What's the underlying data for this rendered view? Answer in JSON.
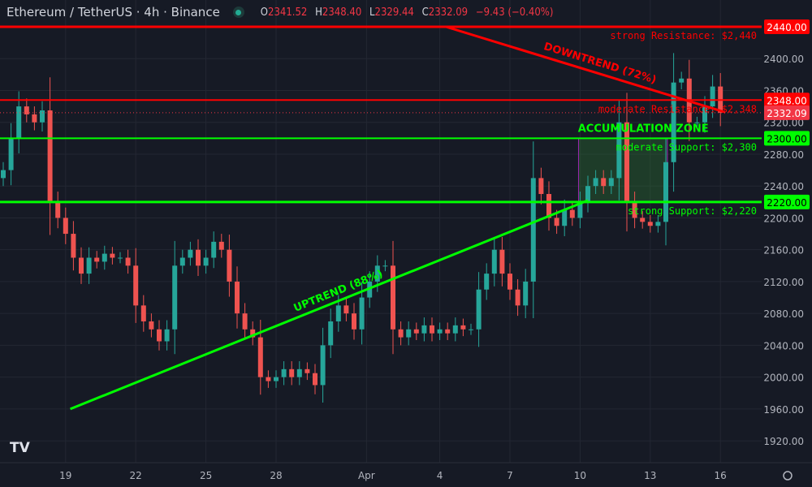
{
  "header": {
    "symbol": "Ethereum / TetherUS · 4h · Binance",
    "status_color": "#22ab94",
    "ohlc": {
      "o_label": "O",
      "o": "2341.52",
      "h_label": "H",
      "h": "2348.40",
      "l_label": "L",
      "l": "2329.44",
      "c_label": "C",
      "c": "2332.09",
      "change": "−9.43 (−0.40%)"
    }
  },
  "colors": {
    "background": "#161a25",
    "grid": "#232733",
    "up": "#26a69a",
    "down": "#ef5350",
    "resistance": "#ff0000",
    "support": "#00ff00",
    "zone_border": "#9c27b0",
    "text": "#b2b5be"
  },
  "chart_data": {
    "type": "candlestick",
    "title": "Ethereum / TetherUS · 4h · Binance",
    "ylim": [
      1900,
      2460
    ],
    "y_ticks": [
      2400,
      2360,
      2320,
      2280,
      2240,
      2200,
      2160,
      2120,
      2080,
      2040,
      2000,
      1960,
      1920
    ],
    "x_ticks": [
      {
        "label": "19",
        "index": 8
      },
      {
        "label": "22",
        "index": 17
      },
      {
        "label": "25",
        "index": 26
      },
      {
        "label": "28",
        "index": 35
      },
      {
        "label": "Apr",
        "index": 46.6
      },
      {
        "label": "4",
        "index": 56
      },
      {
        "label": "7",
        "index": 65
      },
      {
        "label": "10",
        "index": 74
      },
      {
        "label": "13",
        "index": 83
      },
      {
        "label": "16",
        "index": 92
      }
    ],
    "first_open": 2250,
    "closes": [
      2260,
      2300,
      2340,
      2330,
      2320,
      2335,
      2220,
      2200,
      2180,
      2150,
      2130,
      2150,
      2145,
      2155,
      2150,
      2150,
      2140,
      2090,
      2070,
      2060,
      2045,
      2060,
      2140,
      2150,
      2160,
      2140,
      2150,
      2170,
      2160,
      2120,
      2080,
      2060,
      2050,
      2000,
      1995,
      2000,
      2010,
      2000,
      2010,
      2005,
      1990,
      2040,
      2070,
      2090,
      2080,
      2060,
      2100,
      2120,
      2140,
      2140,
      2060,
      2050,
      2060,
      2055,
      2065,
      2055,
      2060,
      2055,
      2065,
      2060,
      2060,
      2110,
      2130,
      2160,
      2130,
      2110,
      2090,
      2120,
      2250,
      2230,
      2200,
      2190,
      2210,
      2200,
      2220,
      2240,
      2250,
      2240,
      2250,
      2320,
      2220,
      2200,
      2195,
      2190,
      2195,
      2270,
      2370,
      2375,
      2320,
      2320,
      2340,
      2365,
      2332.09
    ],
    "current_price": "2332.09",
    "levels": [
      {
        "price": 2440,
        "label": "strong Resistance: $2,440",
        "axis_label": "2440.00",
        "kind": "resistance",
        "width": 3
      },
      {
        "price": 2348,
        "label": "moderate Resistance: $2,348",
        "axis_label": "2348.00",
        "kind": "resistance",
        "width": 2
      },
      {
        "price": 2300,
        "label": "moderate Support: $2,300",
        "axis_label": "2300.00",
        "kind": "support",
        "width": 2
      },
      {
        "price": 2220,
        "label": "strong Support: $2,220",
        "axis_label": "2220.00",
        "kind": "support",
        "width": 3
      }
    ],
    "trendlines": [
      {
        "label": "UPTREND (88%)",
        "kind": "support",
        "from": {
          "index": 8.6,
          "price": 1960
        },
        "to": {
          "index": 75,
          "price": 2222
        }
      },
      {
        "label": "DOWNTREND (72%)",
        "kind": "resistance",
        "from": {
          "index": 56.8,
          "price": 2440
        },
        "to": {
          "index": 92.5,
          "price": 2333
        }
      }
    ],
    "zone": {
      "label": "ACCUMULATION ZONE",
      "from_index": 73.8,
      "to_index": 85.2,
      "top": 2300,
      "bottom": 2220
    }
  }
}
